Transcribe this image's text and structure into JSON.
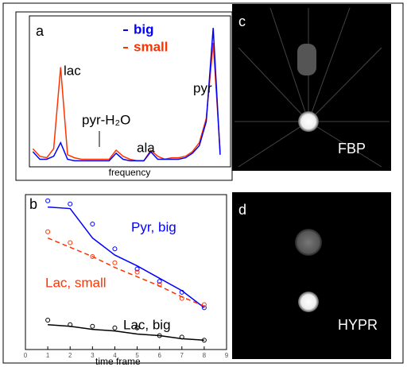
{
  "chart_data": [
    {
      "type": "line",
      "panel_label": "a",
      "xlabel": "frequency",
      "x": [
        0,
        1,
        2,
        3,
        4,
        5,
        6,
        7,
        8,
        9,
        10,
        11,
        12,
        13,
        14,
        15,
        16,
        17,
        18,
        19,
        20,
        21,
        22,
        23,
        24,
        25,
        26,
        27
      ],
      "xlim": [
        -0.5,
        28.5
      ],
      "ylim": [
        0,
        1
      ],
      "series": [
        {
          "name": "big",
          "color": "#0000ff",
          "values": [
            0.1,
            0.05,
            0.05,
            0.07,
            0.16,
            0.05,
            0.04,
            0.04,
            0.04,
            0.04,
            0.04,
            0.04,
            0.09,
            0.05,
            0.04,
            0.04,
            0.04,
            0.1,
            0.05,
            0.05,
            0.05,
            0.05,
            0.06,
            0.09,
            0.14,
            0.3,
            0.92,
            0.08
          ]
        },
        {
          "name": "small",
          "color": "#ff3300",
          "values": [
            0.12,
            0.07,
            0.06,
            0.12,
            0.66,
            0.08,
            0.06,
            0.05,
            0.05,
            0.05,
            0.05,
            0.05,
            0.11,
            0.07,
            0.05,
            0.04,
            0.04,
            0.11,
            0.07,
            0.05,
            0.06,
            0.06,
            0.07,
            0.1,
            0.16,
            0.32,
            0.82,
            0.1
          ]
        }
      ],
      "annotations": [
        "lac",
        "pyr-H₂O",
        "ala",
        "pyr"
      ]
    },
    {
      "type": "scatter",
      "panel_label": "b",
      "xlabel": "time frame",
      "xlim": [
        0,
        9
      ],
      "xticks": [
        0,
        1,
        2,
        3,
        4,
        5,
        6,
        7,
        8,
        9
      ],
      "ylim": [
        0,
        1
      ],
      "x": [
        1,
        2,
        3,
        4,
        5,
        6,
        7,
        8
      ],
      "series": [
        {
          "name": "Pyr, big",
          "color": "#0000ff",
          "values": [
            0.96,
            0.94,
            0.81,
            0.65,
            0.52,
            0.44,
            0.37,
            0.27
          ],
          "fit": [
            0.92,
            0.91,
            0.72,
            0.61,
            0.54,
            0.46,
            0.38,
            0.27
          ],
          "fit_dash": false
        },
        {
          "name": "Lac, small",
          "color": "#ff3300",
          "values": [
            0.76,
            0.69,
            0.6,
            0.56,
            0.5,
            0.42,
            0.33,
            0.29
          ],
          "fit": [
            0.72,
            0.66,
            0.6,
            0.53,
            0.47,
            0.41,
            0.34,
            0.28
          ],
          "fit_dash": true
        },
        {
          "name": "Lac, big",
          "color": "#000000",
          "values": [
            0.19,
            0.16,
            0.15,
            0.14,
            0.14,
            0.09,
            0.08,
            0.06
          ],
          "fit": [
            0.16,
            0.15,
            0.13,
            0.12,
            0.1,
            0.09,
            0.07,
            0.06
          ],
          "fit_dash": false
        }
      ]
    }
  ],
  "images": [
    {
      "panel_label": "c",
      "caption": "FBP"
    },
    {
      "panel_label": "d",
      "caption": "HYPR"
    }
  ]
}
